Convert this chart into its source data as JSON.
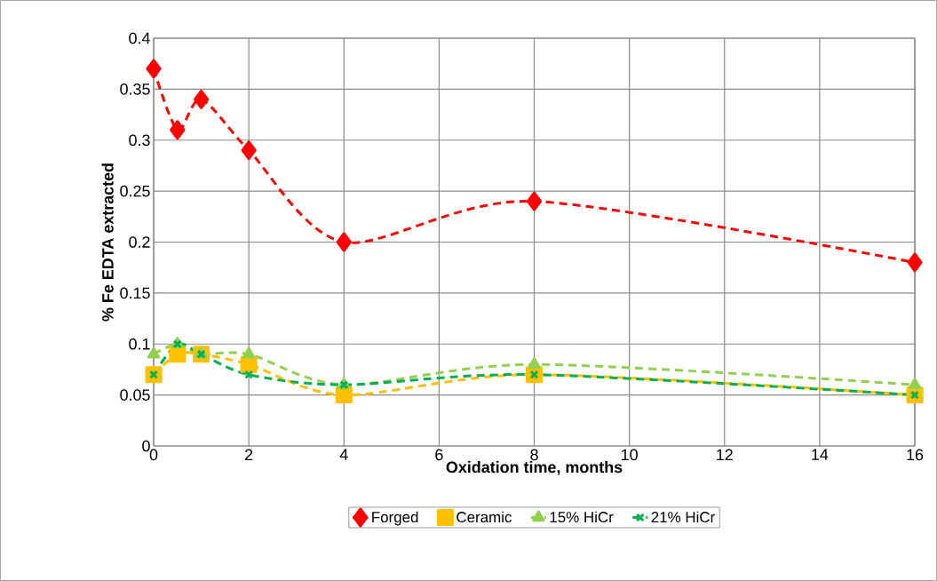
{
  "chart_data": {
    "type": "line",
    "xlabel": "Oxidation time, months",
    "ylabel": "% Fe EDTA extracted",
    "x": [
      0,
      0.5,
      1,
      2,
      4,
      8,
      16
    ],
    "series": [
      {
        "name": "Forged",
        "color": "#ff0000",
        "marker": "diamond",
        "values": [
          0.37,
          0.31,
          0.34,
          0.29,
          0.2,
          0.24,
          0.18
        ]
      },
      {
        "name": "Ceramic",
        "color": "#ffc000",
        "marker": "square",
        "values": [
          0.07,
          0.09,
          0.09,
          0.08,
          0.05,
          0.07,
          0.05
        ]
      },
      {
        "name": "15% HiCr",
        "color": "#92d050",
        "marker": "triangle",
        "values": [
          0.09,
          0.1,
          0.09,
          0.09,
          0.06,
          0.08,
          0.06
        ]
      },
      {
        "name": "21% HiCr",
        "color": "#00b050",
        "marker": "cross",
        "values": [
          0.07,
          0.1,
          0.09,
          0.07,
          0.06,
          0.07,
          0.05
        ]
      }
    ],
    "line_style": "dashed",
    "xlim": [
      0,
      16
    ],
    "xticks": [
      0,
      2,
      4,
      6,
      8,
      10,
      12,
      14,
      16
    ],
    "ylim": [
      0,
      0.4
    ],
    "yticks": [
      0,
      0.05,
      0.1,
      0.15,
      0.2,
      0.25,
      0.3,
      0.35,
      0.4
    ],
    "grid": true,
    "legend": "bottom"
  }
}
